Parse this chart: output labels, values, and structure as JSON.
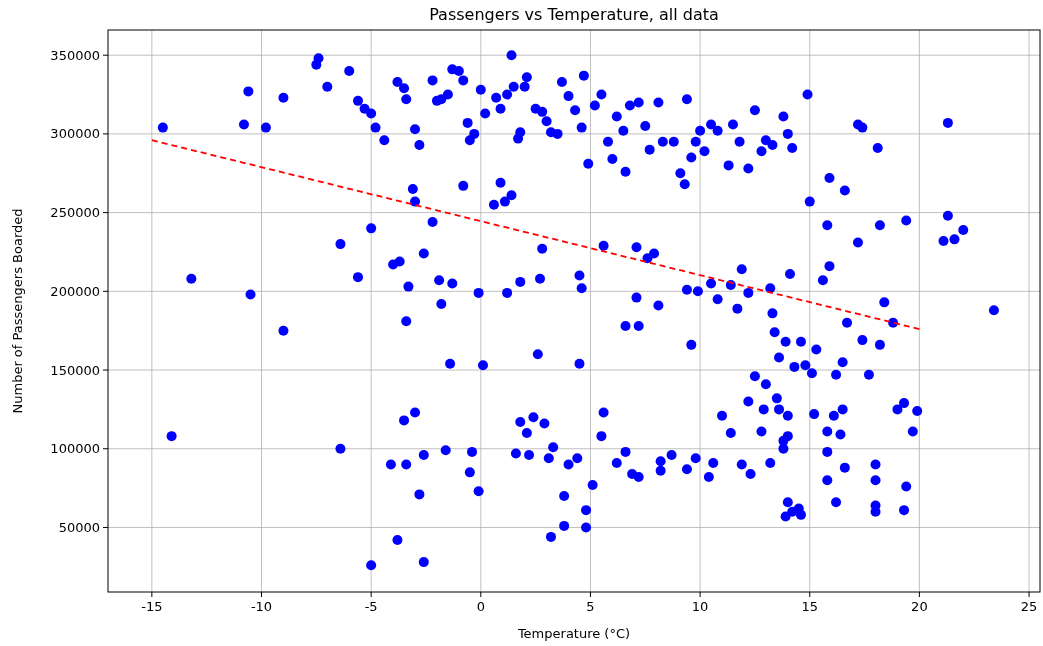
{
  "chart_data": {
    "type": "scatter",
    "title": "Passengers vs Temperature, all data",
    "xlabel": "Temperature (°C)",
    "ylabel": "Number of Passengers Boarded",
    "xlim": [
      -17,
      25.5
    ],
    "ylim": [
      9000,
      366000
    ],
    "xticks": [
      -15,
      -10,
      -5,
      0,
      5,
      10,
      15,
      20,
      25
    ],
    "yticks": [
      50000,
      100000,
      150000,
      200000,
      250000,
      300000,
      350000
    ],
    "grid": true,
    "series": [
      {
        "color": "#0000ff",
        "marker": "circle",
        "x": [
          -14.5,
          -10.8,
          -10.6,
          -9.8,
          -9,
          -7.5,
          -7.4,
          -7,
          -6,
          -5.6,
          -5.3,
          -5,
          -4.8,
          -4.4,
          -3.8,
          -3.5,
          -3.4,
          -3,
          -2.8,
          -2.2,
          -2,
          -1.8,
          -1.5,
          -1.3,
          -1,
          -0.8,
          -0.6,
          -0.5,
          -0.3,
          0,
          0.2,
          0.7,
          0.9,
          1.2,
          1.4,
          1.5,
          1.7,
          1.8,
          2,
          2.1,
          2.5,
          2.8,
          3,
          3.2,
          3.5,
          3.7,
          4,
          4.3,
          4.6,
          4.7,
          4.9,
          5.2,
          5.5,
          5.8,
          6,
          6.2,
          6.5,
          6.6,
          6.8,
          7.2,
          7.5,
          7.7,
          8.1,
          8.3,
          8.8,
          9.1,
          9.3,
          9.4,
          9.6,
          9.8,
          10,
          10.2,
          10.5,
          10.8,
          11.3,
          11.5,
          11.8,
          12.2,
          12.5,
          12.8,
          13,
          13.3,
          13.8,
          14,
          14.2,
          14.9,
          15,
          15.8,
          15.9,
          16.6,
          17.2,
          17.4,
          18.1,
          21.1,
          21.3,
          21.3,
          21.6,
          22,
          23.4,
          -13.2,
          -10.5,
          -9,
          -6.4,
          -5.6,
          -5,
          -4,
          -3.7,
          -3.4,
          -3.3,
          -3.1,
          -3,
          -2.6,
          -2.2,
          -1.9,
          -1.8,
          -1.4,
          -1.3,
          -0.8,
          -0.1,
          0.1,
          0.6,
          0.9,
          1.1,
          1.2,
          1.4,
          1.8,
          2.6,
          2.7,
          2.8,
          4.5,
          4.6,
          4.5,
          5.6,
          6.6,
          7.1,
          7.1,
          7.2,
          7.6,
          7.9,
          8.1,
          9.4,
          9.6,
          9.9,
          10.5,
          10.8,
          11.4,
          11.7,
          11.9,
          12.2,
          13.2,
          13.3,
          13.4,
          13.6,
          13.9,
          14.1,
          14.3,
          14.6,
          14.8,
          15.1,
          15.3,
          15.6,
          15.9,
          16.2,
          16.7,
          17.2,
          17.4,
          18.2,
          18.4,
          18.8,
          19.4,
          12.5,
          13,
          16.5,
          18.2,
          17.7,
          -14.1,
          -6.4,
          -5,
          -4.1,
          -3.8,
          -3.5,
          -3.4,
          -3,
          -2.8,
          -2.6,
          -2.6,
          -1.6,
          -0.5,
          -0.4,
          -0.1,
          1.6,
          1.8,
          2.1,
          2.2,
          2.4,
          2.9,
          3.1,
          3.2,
          3.3,
          3.8,
          3.8,
          4,
          4.4,
          4.8,
          4.8,
          5.1,
          5.5,
          5.6,
          6.2,
          6.6,
          6.9,
          7.2,
          8.2,
          8.2,
          8.7,
          9.4,
          9.8,
          10.4,
          10.6,
          11,
          11.4,
          11.9,
          12.2,
          12.3,
          12.8,
          12.9,
          13.2,
          13.5,
          13.8,
          13.9,
          14,
          14.2,
          14.5,
          14.6,
          15.2,
          15.8,
          15.8,
          16.1,
          16.2,
          16.5,
          16.6,
          18,
          18,
          18,
          18,
          19,
          19.3,
          19.4,
          19.3,
          19.7,
          19.9,
          13.6,
          14,
          15.8,
          16.4,
          14,
          13.8
        ],
        "values": [
          304000,
          306000,
          327000,
          304000,
          323000,
          344000,
          348000,
          330000,
          340000,
          321000,
          316000,
          313000,
          304000,
          296000,
          333000,
          329000,
          322000,
          303000,
          293000,
          334000,
          321000,
          322000,
          325000,
          341000,
          340000,
          334000,
          307000,
          296000,
          300000,
          328000,
          313000,
          323000,
          316000,
          325000,
          350000,
          330000,
          297000,
          301000,
          330000,
          336000,
          316000,
          314000,
          308000,
          301000,
          300000,
          333000,
          324000,
          315000,
          304000,
          337000,
          281000,
          318000,
          325000,
          295000,
          284000,
          311000,
          302000,
          276000,
          318000,
          320000,
          305000,
          290000,
          320000,
          295000,
          295000,
          275000,
          268000,
          322000,
          285000,
          295000,
          302000,
          289000,
          306000,
          302000,
          280000,
          306000,
          295000,
          278000,
          315000,
          289000,
          296000,
          293000,
          311000,
          300000,
          291000,
          325000,
          257000,
          242000,
          272000,
          264000,
          306000,
          304000,
          291000,
          232000,
          307000,
          248000,
          233000,
          239000,
          188000,
          208000,
          198000,
          175000,
          230000,
          209000,
          240000,
          217000,
          219000,
          181000,
          203000,
          265000,
          257000,
          224000,
          244000,
          207000,
          192000,
          154000,
          205000,
          267000,
          199000,
          153000,
          255000,
          269000,
          257000,
          199000,
          261000,
          206000,
          160000,
          208000,
          227000,
          210000,
          202000,
          154000,
          229000,
          178000,
          228000,
          196000,
          178000,
          221000,
          224000,
          191000,
          201000,
          166000,
          200000,
          205000,
          195000,
          204000,
          189000,
          214000,
          199000,
          202000,
          186000,
          174000,
          158000,
          168000,
          211000,
          152000,
          168000,
          153000,
          148000,
          163000,
          207000,
          216000,
          147000,
          180000,
          231000,
          169000,
          242000,
          193000,
          180000,
          245000,
          146000,
          141000,
          155000,
          166000,
          147000,
          108000,
          100000,
          26000,
          90000,
          42000,
          118000,
          90000,
          123000,
          71000,
          28000,
          96000,
          99000,
          85000,
          98000,
          73000,
          97000,
          117000,
          110000,
          96000,
          120000,
          116000,
          94000,
          44000,
          101000,
          70000,
          51000,
          90000,
          94000,
          61000,
          50000,
          77000,
          108000,
          123000,
          91000,
          98000,
          84000,
          82000,
          92000,
          86000,
          96000,
          87000,
          94000,
          82000,
          91000,
          121000,
          110000,
          90000,
          130000,
          84000,
          111000,
          125000,
          91000,
          132000,
          100000,
          57000,
          66000,
          60000,
          62000,
          58000,
          122000,
          80000,
          111000,
          121000,
          66000,
          125000,
          88000,
          90000,
          64000,
          80000,
          60000,
          125000,
          129000,
          76000,
          61000,
          111000,
          124000,
          125000,
          121000,
          98000,
          109000,
          108000,
          105000
        ]
      },
      {
        "type": "line",
        "color": "#ff0000",
        "line_style": "dashed",
        "marker": "none",
        "x": [
          -15,
          20
        ],
        "values": [
          296000,
          176000
        ]
      }
    ]
  }
}
